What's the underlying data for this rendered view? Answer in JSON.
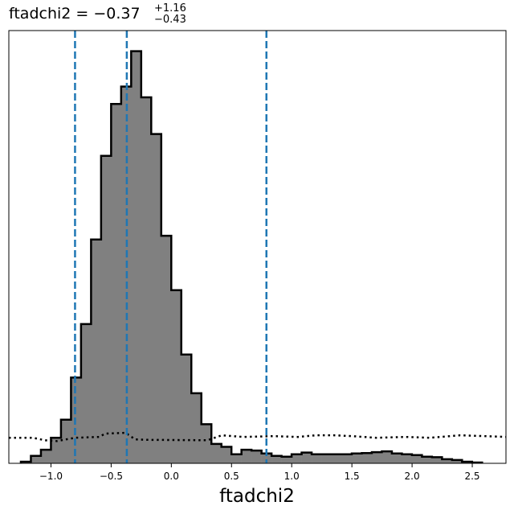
{
  "chart_data": {
    "type": "histogram",
    "title": {
      "prefix": "ftadchi2 = ",
      "value": "−0.37",
      "upper": "+1.16",
      "lower": "−0.43"
    },
    "xlabel": "ftadchi2",
    "ylabel": "",
    "xlim": [
      -1.35,
      2.78
    ],
    "ylim": [
      0,
      1.05
    ],
    "x_ticks": [
      -1.0,
      -0.5,
      0.0,
      0.5,
      1.0,
      1.5,
      2.0,
      2.5
    ],
    "x_tick_labels": [
      "−1.0",
      "−0.5",
      "0.0",
      "0.5",
      "1.0",
      "1.5",
      "2.0",
      "2.5"
    ],
    "y_ticks_visible": false,
    "grid": false,
    "colors": {
      "fill": "#808080",
      "edge": "#000000",
      "quantile_lines": "#1f77b4",
      "prior": "#000000"
    },
    "bin_width": 0.0833,
    "histogram": {
      "bin_edges_start": -1.25,
      "heights": [
        0.004,
        0.018,
        0.033,
        0.062,
        0.106,
        0.208,
        0.338,
        0.543,
        0.746,
        0.872,
        0.914,
        1.0,
        0.888,
        0.799,
        0.552,
        0.42,
        0.264,
        0.17,
        0.095,
        0.047,
        0.04,
        0.022,
        0.033,
        0.031,
        0.024,
        0.018,
        0.016,
        0.022,
        0.026,
        0.022,
        0.022,
        0.022,
        0.022,
        0.024,
        0.025,
        0.027,
        0.029,
        0.024,
        0.022,
        0.02,
        0.016,
        0.015,
        0.01,
        0.008,
        0.004,
        0.002
      ]
    },
    "quantile_lines": [
      -0.8,
      -0.37,
      0.79
    ],
    "prior_dotted": [
      [
        -1.35,
        0.062
      ],
      [
        -1.15,
        0.062
      ],
      [
        -1.05,
        0.056
      ],
      [
        -0.95,
        0.054
      ],
      [
        -0.8,
        0.062
      ],
      [
        -0.6,
        0.064
      ],
      [
        -0.55,
        0.072
      ],
      [
        -0.38,
        0.074
      ],
      [
        -0.3,
        0.058
      ],
      [
        -0.2,
        0.057
      ],
      [
        0.3,
        0.056
      ],
      [
        0.42,
        0.068
      ],
      [
        0.6,
        0.064
      ],
      [
        0.85,
        0.066
      ],
      [
        1.05,
        0.064
      ],
      [
        1.2,
        0.068
      ],
      [
        1.35,
        0.068
      ],
      [
        1.5,
        0.066
      ],
      [
        1.7,
        0.062
      ],
      [
        1.95,
        0.064
      ],
      [
        2.15,
        0.062
      ],
      [
        2.4,
        0.068
      ],
      [
        2.6,
        0.066
      ],
      [
        2.78,
        0.064
      ]
    ]
  }
}
